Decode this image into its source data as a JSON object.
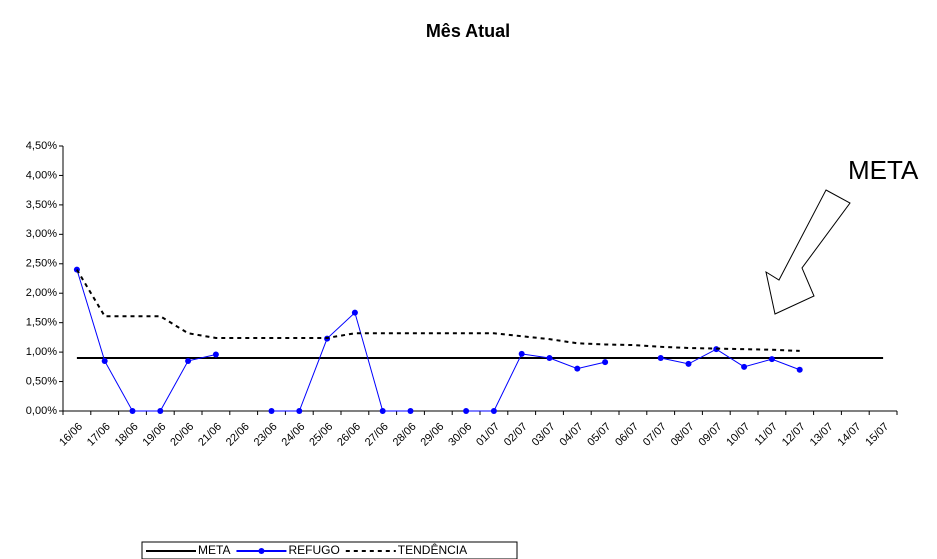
{
  "chart_data": {
    "type": "line",
    "title": "Mês Atual",
    "annotation": "META",
    "categories": [
      "16/06",
      "17/06",
      "18/06",
      "19/06",
      "20/06",
      "21/06",
      "22/06",
      "23/06",
      "24/06",
      "25/06",
      "26/06",
      "27/06",
      "28/06",
      "29/06",
      "30/06",
      "01/07",
      "02/07",
      "03/07",
      "04/07",
      "05/07",
      "06/07",
      "07/07",
      "08/07",
      "09/07",
      "10/07",
      "11/07",
      "12/07",
      "13/07",
      "14/07",
      "15/07"
    ],
    "series": [
      {
        "name": "META",
        "color": "#000000",
        "style": "solid",
        "marker": false,
        "values": [
          0.9,
          0.9,
          0.9,
          0.9,
          0.9,
          0.9,
          0.9,
          0.9,
          0.9,
          0.9,
          0.9,
          0.9,
          0.9,
          0.9,
          0.9,
          0.9,
          0.9,
          0.9,
          0.9,
          0.9,
          0.9,
          0.9,
          0.9,
          0.9,
          0.9,
          0.9,
          0.9,
          0.9,
          0.9,
          0.9
        ]
      },
      {
        "name": "REFUGO",
        "color": "#0000ff",
        "style": "solid",
        "marker": true,
        "values": [
          2.4,
          0.85,
          0,
          0,
          0.85,
          0.96,
          null,
          0,
          0,
          1.23,
          1.67,
          0,
          0,
          null,
          0,
          0,
          0.97,
          0.9,
          0.72,
          0.83,
          null,
          0.9,
          0.8,
          1.05,
          0.75,
          0.88,
          0.7,
          null,
          null,
          null
        ]
      },
      {
        "name": "TENDÊNCIA",
        "color": "#000000",
        "style": "dotted",
        "marker": false,
        "values": [
          2.4,
          1.61,
          1.61,
          1.61,
          1.32,
          1.24,
          1.24,
          1.24,
          1.24,
          1.24,
          1.32,
          1.32,
          1.32,
          1.32,
          1.32,
          1.32,
          1.27,
          1.22,
          1.15,
          1.13,
          1.12,
          1.09,
          1.07,
          1.06,
          1.05,
          1.04,
          1.02,
          null,
          null,
          null
        ]
      }
    ],
    "ylim": [
      0,
      4.5
    ],
    "yticks": [
      {
        "value": 0,
        "label": "0,00%"
      },
      {
        "value": 0.5,
        "label": "0,50%"
      },
      {
        "value": 1,
        "label": "1,00%"
      },
      {
        "value": 1.5,
        "label": "1,50%"
      },
      {
        "value": 2,
        "label": "2,00%"
      },
      {
        "value": 2.5,
        "label": "2,50%"
      },
      {
        "value": 3,
        "label": "3,00%"
      },
      {
        "value": 3.5,
        "label": "3,50%"
      },
      {
        "value": 4,
        "label": "4,00%"
      },
      {
        "value": 4.5,
        "label": "4,50%"
      }
    ],
    "grid": false,
    "legend": "bottom"
  }
}
